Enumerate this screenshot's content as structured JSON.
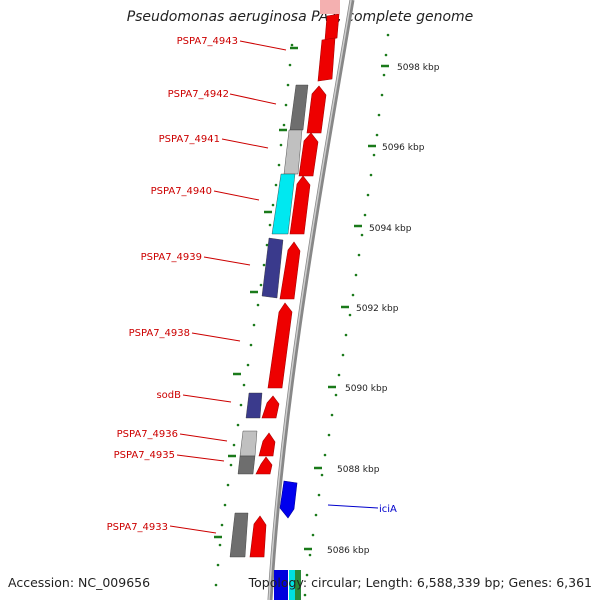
{
  "title": "Pseudomonas aeruginosa PA7, complete genome",
  "footer": {
    "accession": "Accession: NC_009656",
    "topology": "Topology: circular; Length: 6,588,339 bp; Genes: 6,361"
  },
  "colors": {
    "forward_cds": "#ee0000",
    "gene_label": "#cc0000",
    "feature_label": "#0000cc",
    "tick": "#1a7a1a",
    "backbone": "#888888"
  },
  "scale_labels": [
    "5098 kbp",
    "5096 kbp",
    "5094 kbp",
    "5092 kbp",
    "5090 kbp",
    "5088 kbp",
    "5086 kbp"
  ],
  "gene_labels": [
    "PSPA7_4943",
    "PSPA7_4942",
    "PSPA7_4941",
    "PSPA7_4940",
    "PSPA7_4939",
    "PSPA7_4938",
    "sodB",
    "PSPA7_4936",
    "PSPA7_4935",
    "PSPA7_4933"
  ],
  "feature_labels": [
    "iciA"
  ]
}
